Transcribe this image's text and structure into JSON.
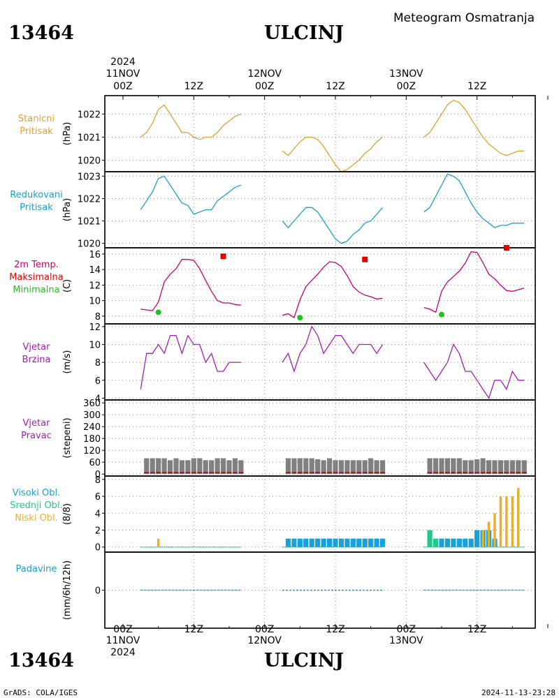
{
  "header": {
    "station_id": "13464",
    "station_name": "ULCINJ",
    "subtitle": "Meteogram Osmatranja"
  },
  "footer": {
    "station_id": "13464",
    "station_name": "ULCINJ",
    "credit": "GrADS: COLA/IGES",
    "timestamp": "2024-11-13-23:28"
  },
  "colors": {
    "pressure": "#e0a030",
    "reduced_pressure": "#1aa0c8",
    "temperature": "#c8006a",
    "tmax": "#e00000",
    "tmin": "#20c020",
    "wind": "#a020b0",
    "direction_bar": "#808080",
    "direction_bar_dark": "#a02020",
    "cloud_high": "#1aa0d8",
    "cloud_mid": "#20c890",
    "cloud_low": "#e8b030",
    "precip": "#1aa0c8",
    "frame": "#000000",
    "grid": "#888888"
  },
  "time_axis": {
    "top_year": "2024",
    "top_labels": [
      {
        "day": "11NOV",
        "hour": "00Z",
        "h": 0
      },
      {
        "day": "",
        "hour": "12Z",
        "h": 12
      },
      {
        "day": "12NOV",
        "hour": "00Z",
        "h": 24
      },
      {
        "day": "",
        "hour": "12Z",
        "h": 36
      },
      {
        "day": "13NOV",
        "hour": "00Z",
        "h": 48
      },
      {
        "day": "",
        "hour": "12Z",
        "h": 60
      }
    ],
    "bottom_year": "2024"
  },
  "chart_data": [
    {
      "type": "line",
      "panel": "pressure",
      "label_lines": [
        "Stanicni",
        "Pritisak"
      ],
      "ylabel": "(hPa)",
      "ylim": [
        1019.5,
        1022.8
      ],
      "yticks": [
        1020,
        1021,
        1022
      ],
      "x_unit": "hours since 11NOV 00Z",
      "segments": [
        {
          "x": [
            3,
            4,
            5,
            6,
            7,
            8,
            9,
            10,
            11,
            12,
            13,
            14,
            15,
            16,
            17,
            18,
            19,
            20
          ],
          "y": [
            1021.0,
            1021.2,
            1021.6,
            1022.2,
            1022.4,
            1022.0,
            1021.6,
            1021.2,
            1021.2,
            1021.0,
            1020.9,
            1021.0,
            1021.0,
            1021.2,
            1021.5,
            1021.7,
            1021.9,
            1022.0
          ]
        },
        {
          "x": [
            27,
            28,
            29,
            30,
            31,
            32,
            33,
            34,
            35,
            36,
            37,
            38,
            39,
            40,
            41,
            42,
            43,
            44
          ],
          "y": [
            1020.4,
            1020.2,
            1020.5,
            1020.8,
            1021.0,
            1021.0,
            1020.9,
            1020.6,
            1020.2,
            1019.8,
            1019.5,
            1019.6,
            1019.8,
            1020.0,
            1020.3,
            1020.5,
            1020.8,
            1021.0
          ]
        },
        {
          "x": [
            51,
            52,
            53,
            54,
            55,
            56,
            57,
            58,
            59,
            60,
            61,
            62,
            63,
            64,
            65,
            66,
            67,
            68
          ],
          "y": [
            1021.0,
            1021.2,
            1021.6,
            1022.0,
            1022.4,
            1022.6,
            1022.5,
            1022.2,
            1021.8,
            1021.4,
            1021.0,
            1020.7,
            1020.5,
            1020.3,
            1020.2,
            1020.3,
            1020.4,
            1020.4
          ]
        }
      ]
    },
    {
      "type": "line",
      "panel": "reduced_pressure",
      "label_lines": [
        "Redukovani",
        "Pritisak"
      ],
      "ylabel": "(hPa)",
      "ylim": [
        1019.8,
        1023.2
      ],
      "yticks": [
        1020,
        1021,
        1022,
        1023
      ],
      "x_unit": "hours since 11NOV 00Z",
      "segments": [
        {
          "x": [
            3,
            4,
            5,
            6,
            7,
            8,
            9,
            10,
            11,
            12,
            13,
            14,
            15,
            16,
            17,
            18,
            19,
            20
          ],
          "y": [
            1021.5,
            1021.9,
            1022.3,
            1022.9,
            1023.0,
            1022.6,
            1022.2,
            1021.8,
            1021.7,
            1021.3,
            1021.4,
            1021.5,
            1021.5,
            1021.9,
            1022.1,
            1022.3,
            1022.5,
            1022.6
          ]
        },
        {
          "x": [
            27,
            28,
            29,
            30,
            31,
            32,
            33,
            34,
            35,
            36,
            37,
            38,
            39,
            40,
            41,
            42,
            43,
            44
          ],
          "y": [
            1021.0,
            1020.7,
            1021.0,
            1021.3,
            1021.6,
            1021.6,
            1021.4,
            1021.0,
            1020.6,
            1020.2,
            1020.0,
            1020.1,
            1020.4,
            1020.6,
            1020.9,
            1021.0,
            1021.3,
            1021.6
          ]
        },
        {
          "x": [
            51,
            52,
            53,
            54,
            55,
            56,
            57,
            58,
            59,
            60,
            61,
            62,
            63,
            64,
            65,
            66,
            67,
            68
          ],
          "y": [
            1021.4,
            1021.6,
            1022.1,
            1022.6,
            1023.1,
            1023.0,
            1022.8,
            1022.3,
            1021.8,
            1021.4,
            1021.1,
            1020.9,
            1020.7,
            1020.8,
            1020.8,
            1020.9,
            1020.9,
            1020.9
          ]
        }
      ]
    },
    {
      "type": "line",
      "panel": "temperature",
      "label_lines": [
        "2m Temp.",
        "Maksimalna",
        "Minimalna"
      ],
      "ylabel": "(C)",
      "ylim": [
        7.0,
        16.8
      ],
      "yticks": [
        8,
        10,
        12,
        14,
        16
      ],
      "x_unit": "hours since 11NOV 00Z",
      "segments": [
        {
          "x": [
            3,
            4,
            5,
            6,
            7,
            8,
            9,
            10,
            11,
            12,
            13,
            14,
            15,
            16,
            17,
            18,
            19,
            20
          ],
          "y": [
            8.9,
            8.8,
            8.7,
            9.8,
            12.4,
            13.4,
            14.1,
            15.3,
            15.3,
            15.2,
            14.1,
            12.6,
            11.2,
            10.0,
            9.7,
            9.7,
            9.5,
            9.4
          ]
        },
        {
          "x": [
            27,
            28,
            29,
            30,
            31,
            32,
            33,
            34,
            35,
            36,
            37,
            38,
            39,
            40,
            41,
            42,
            43,
            44
          ],
          "y": [
            8.1,
            8.3,
            7.8,
            10.1,
            11.8,
            12.6,
            13.4,
            14.3,
            15.0,
            14.9,
            14.4,
            13.2,
            11.8,
            11.1,
            10.7,
            10.5,
            10.2,
            10.3
          ]
        },
        {
          "x": [
            51,
            52,
            53,
            54,
            55,
            56,
            57,
            58,
            59,
            60,
            61,
            62,
            63,
            64,
            65,
            66,
            67,
            68
          ],
          "y": [
            9.1,
            8.9,
            8.5,
            11.2,
            12.4,
            13.1,
            13.8,
            14.8,
            16.3,
            16.2,
            14.9,
            13.4,
            12.8,
            12.0,
            11.3,
            11.2,
            11.4,
            11.6
          ]
        }
      ],
      "maxima": [
        {
          "x": 17,
          "y": 15.7
        },
        {
          "x": 41,
          "y": 15.3
        },
        {
          "x": 65,
          "y": 16.8
        }
      ],
      "minima": [
        {
          "x": 6,
          "y": 8.5
        },
        {
          "x": 30,
          "y": 7.8
        },
        {
          "x": 54,
          "y": 8.2
        }
      ]
    },
    {
      "type": "line",
      "panel": "wind_speed",
      "label_lines": [
        "Vjetar",
        "Brzina"
      ],
      "ylabel": "(m/s)",
      "ylim": [
        3.8,
        12.3
      ],
      "yticks": [
        4,
        6,
        8,
        10,
        12
      ],
      "x_unit": "hours since 11NOV 00Z",
      "segments": [
        {
          "x": [
            3,
            4,
            5,
            6,
            7,
            8,
            9,
            10,
            11,
            12,
            13,
            14,
            15,
            16,
            17,
            18,
            19,
            20
          ],
          "y": [
            5,
            9,
            9,
            10,
            9,
            11,
            11,
            9,
            11,
            10,
            10,
            8,
            9,
            7,
            7,
            8,
            8,
            8
          ]
        },
        {
          "x": [
            27,
            28,
            29,
            30,
            31,
            32,
            33,
            34,
            35,
            36,
            37,
            38,
            39,
            40,
            41,
            42,
            43,
            44
          ],
          "y": [
            8,
            9,
            7,
            9,
            10,
            12,
            11,
            9,
            10,
            11,
            11,
            10,
            9,
            10,
            10,
            10,
            9,
            10
          ]
        },
        {
          "x": [
            51,
            52,
            53,
            54,
            55,
            56,
            57,
            58,
            59,
            60,
            61,
            62,
            63,
            64,
            65,
            66,
            67,
            68
          ],
          "y": [
            8,
            7,
            6,
            7,
            8,
            10,
            9,
            7,
            7,
            6,
            5,
            4,
            6,
            6,
            5,
            7,
            6,
            6
          ]
        }
      ]
    },
    {
      "type": "bar",
      "panel": "wind_direction",
      "label_lines": [
        "Vjetar",
        "Pravac"
      ],
      "ylabel": "(stepeni)",
      "ylim": [
        -10,
        375
      ],
      "yticks": [
        0,
        60,
        120,
        180,
        240,
        300,
        360
      ],
      "x_unit": "hours since 11NOV 00Z",
      "x": [
        4,
        5,
        6,
        7,
        8,
        9,
        10,
        11,
        12,
        13,
        14,
        15,
        16,
        17,
        18,
        19,
        20,
        28,
        29,
        30,
        31,
        32,
        33,
        34,
        35,
        36,
        37,
        38,
        39,
        40,
        41,
        42,
        43,
        44,
        52,
        53,
        54,
        55,
        56,
        57,
        58,
        59,
        60,
        61,
        62,
        63,
        64,
        65,
        66,
        67,
        68
      ],
      "values": [
        80,
        80,
        80,
        80,
        70,
        80,
        70,
        70,
        80,
        80,
        70,
        70,
        80,
        80,
        70,
        80,
        70,
        80,
        80,
        80,
        80,
        80,
        75,
        70,
        80,
        70,
        70,
        70,
        70,
        70,
        70,
        80,
        70,
        70,
        80,
        80,
        80,
        80,
        80,
        80,
        70,
        70,
        75,
        80,
        70,
        70,
        70,
        70,
        70,
        70,
        70
      ]
    },
    {
      "type": "bar",
      "panel": "cloud_cover",
      "label_lines": [
        "Visoki Obl.",
        "Srednji Obl.",
        "Niski Obl."
      ],
      "ylabel": "(8/8)",
      "ylim": [
        -0.6,
        8.4
      ],
      "yticks": [
        0,
        2,
        4,
        6,
        8
      ],
      "x_unit": "hours since 11NOV 00Z",
      "series": [
        {
          "name": "Visoki Obl.",
          "color_key": "cloud_high",
          "x": [
            28,
            29,
            30,
            31,
            32,
            33,
            34,
            35,
            36,
            37,
            38,
            39,
            40,
            41,
            42,
            43,
            44,
            54,
            55,
            56,
            57,
            58,
            59,
            60,
            61,
            62,
            63
          ],
          "values": [
            1,
            1,
            1,
            1,
            1,
            1,
            1,
            1,
            1,
            1,
            1,
            1,
            1,
            1,
            1,
            1,
            1,
            1,
            1,
            1,
            1,
            1,
            1,
            2,
            2,
            2,
            1
          ]
        },
        {
          "name": "Srednji Obl.",
          "color_key": "cloud_mid",
          "x": [
            52,
            53
          ],
          "values": [
            2,
            1
          ]
        },
        {
          "name": "Niski Obl.",
          "color_key": "cloud_low",
          "x": [
            6,
            61,
            62,
            63,
            64,
            65,
            66,
            67
          ],
          "values": [
            1,
            2,
            3,
            4,
            6,
            6,
            6,
            7
          ]
        }
      ]
    },
    {
      "type": "line",
      "panel": "precipitation",
      "label_lines": [
        "Padavine"
      ],
      "ylabel": "(mm/6h/12h)",
      "ylim": [
        -1,
        1
      ],
      "yticks": [
        0
      ],
      "x_unit": "hours since 11NOV 00Z",
      "segments": [
        {
          "x": [
            3,
            20
          ],
          "y": [
            0,
            0
          ]
        },
        {
          "x": [
            27,
            44
          ],
          "y": [
            0,
            0
          ]
        },
        {
          "x": [
            51,
            68
          ],
          "y": [
            0,
            0
          ]
        }
      ]
    }
  ]
}
